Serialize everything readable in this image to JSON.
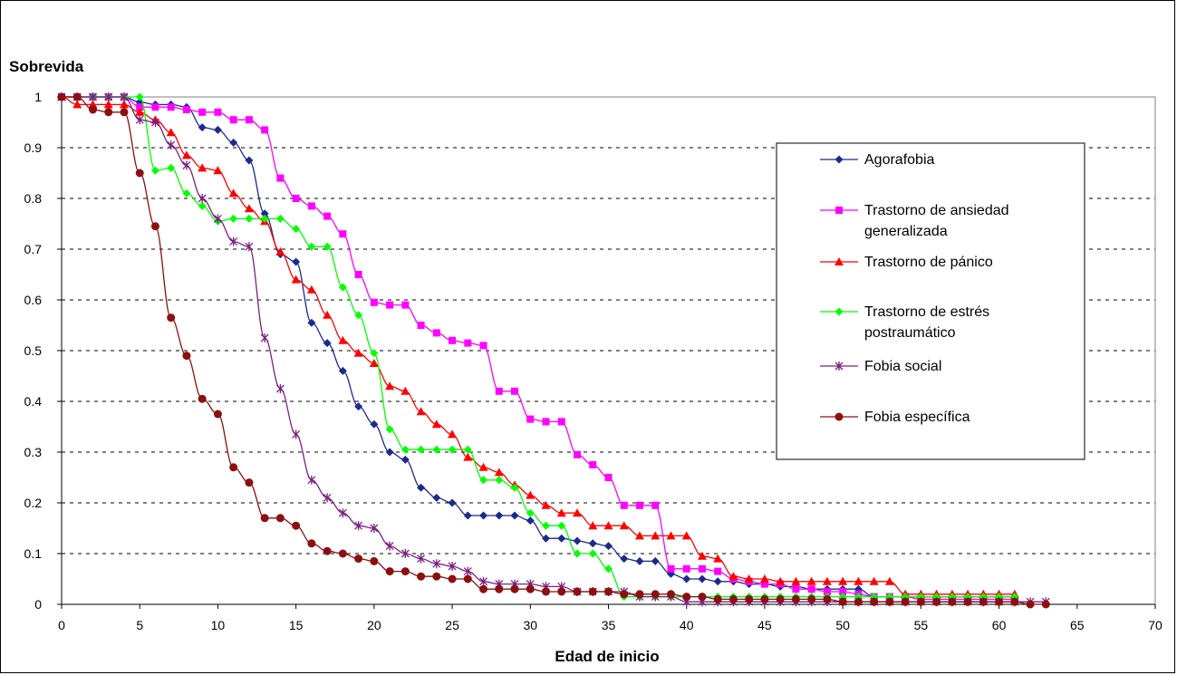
{
  "chart_data": {
    "type": "line",
    "ylabel": "Sobrevida",
    "xlabel": "Edad de inicio",
    "xlim": [
      0,
      70
    ],
    "ylim": [
      0,
      1
    ],
    "xticks": [
      0,
      5,
      10,
      15,
      20,
      25,
      30,
      35,
      40,
      45,
      50,
      55,
      60,
      65,
      70
    ],
    "yticks": [
      0,
      0.1,
      0.2,
      0.3,
      0.4,
      0.5,
      0.6,
      0.7,
      0.8,
      0.9,
      1
    ],
    "grid": "horizontal dashed",
    "legend_position": "right",
    "series": [
      {
        "name": "Agorafobia",
        "color": "#1c2a8c",
        "marker": "diamond",
        "x": [
          0,
          1,
          2,
          3,
          4,
          5,
          6,
          7,
          8,
          9,
          10,
          11,
          12,
          13,
          14,
          15,
          16,
          17,
          18,
          19,
          20,
          21,
          22,
          23,
          24,
          25,
          26,
          27,
          28,
          29,
          30,
          31,
          32,
          33,
          34,
          35,
          36,
          37,
          38,
          39,
          40,
          41,
          42,
          43,
          44,
          45,
          46,
          47,
          48,
          49,
          50,
          51,
          52,
          53,
          54,
          55,
          56,
          57,
          58,
          59,
          60,
          61
        ],
        "y": [
          1,
          1,
          1,
          1,
          1,
          0.99,
          0.985,
          0.985,
          0.98,
          0.94,
          0.935,
          0.91,
          0.875,
          0.77,
          0.69,
          0.675,
          0.555,
          0.515,
          0.46,
          0.39,
          0.355,
          0.3,
          0.285,
          0.23,
          0.21,
          0.2,
          0.175,
          0.175,
          0.175,
          0.175,
          0.165,
          0.13,
          0.13,
          0.125,
          0.12,
          0.115,
          0.09,
          0.085,
          0.085,
          0.06,
          0.05,
          0.05,
          0.045,
          0.045,
          0.04,
          0.04,
          0.035,
          0.035,
          0.03,
          0.03,
          0.03,
          0.03,
          0.015,
          0.015,
          0.015,
          0.015,
          0.015,
          0.015,
          0.015,
          0.015,
          0.015,
          0.015
        ]
      },
      {
        "name": "Trastorno de ansiedad generalizada",
        "color": "#ff00ff",
        "marker": "square",
        "x": [
          0,
          1,
          2,
          3,
          4,
          5,
          6,
          7,
          8,
          9,
          10,
          11,
          12,
          13,
          14,
          15,
          16,
          17,
          18,
          19,
          20,
          21,
          22,
          23,
          24,
          25,
          26,
          27,
          28,
          29,
          30,
          31,
          32,
          33,
          34,
          35,
          36,
          37,
          38,
          39,
          40,
          41,
          42,
          43,
          44,
          45,
          46,
          47,
          48,
          49,
          50,
          51,
          52,
          53,
          54,
          55,
          56,
          57,
          58,
          59,
          60,
          61
        ],
        "y": [
          1,
          1,
          1,
          1,
          1,
          0.98,
          0.98,
          0.98,
          0.975,
          0.97,
          0.97,
          0.955,
          0.955,
          0.935,
          0.84,
          0.8,
          0.785,
          0.765,
          0.73,
          0.65,
          0.595,
          0.59,
          0.59,
          0.55,
          0.535,
          0.52,
          0.515,
          0.51,
          0.42,
          0.42,
          0.365,
          0.36,
          0.36,
          0.295,
          0.275,
          0.25,
          0.195,
          0.195,
          0.195,
          0.07,
          0.07,
          0.07,
          0.065,
          0.05,
          0.045,
          0.04,
          0.04,
          0.03,
          0.03,
          0.025,
          0.025,
          0.02,
          0.015,
          0.015,
          0.015,
          0.01,
          0.01,
          0.01,
          0.01,
          0.01,
          0.01,
          0.01
        ]
      },
      {
        "name": "Trastorno de pánico",
        "color": "#ff0000",
        "marker": "triangle",
        "x": [
          0,
          1,
          2,
          3,
          4,
          5,
          6,
          7,
          8,
          9,
          10,
          11,
          12,
          13,
          14,
          15,
          16,
          17,
          18,
          19,
          20,
          21,
          22,
          23,
          24,
          25,
          26,
          27,
          28,
          29,
          30,
          31,
          32,
          33,
          34,
          35,
          36,
          37,
          38,
          39,
          40,
          41,
          42,
          43,
          44,
          45,
          46,
          47,
          48,
          49,
          50,
          51,
          52,
          53,
          54,
          55,
          56,
          57,
          58,
          59,
          60,
          61
        ],
        "y": [
          1,
          0.985,
          0.985,
          0.985,
          0.985,
          0.97,
          0.955,
          0.93,
          0.885,
          0.86,
          0.855,
          0.81,
          0.78,
          0.755,
          0.695,
          0.64,
          0.62,
          0.57,
          0.52,
          0.495,
          0.475,
          0.43,
          0.42,
          0.38,
          0.355,
          0.335,
          0.29,
          0.27,
          0.26,
          0.235,
          0.215,
          0.195,
          0.18,
          0.18,
          0.155,
          0.155,
          0.155,
          0.135,
          0.135,
          0.135,
          0.135,
          0.095,
          0.09,
          0.055,
          0.05,
          0.05,
          0.045,
          0.045,
          0.045,
          0.045,
          0.045,
          0.045,
          0.045,
          0.045,
          0.02,
          0.02,
          0.02,
          0.02,
          0.02,
          0.02,
          0.02,
          0.02
        ]
      },
      {
        "name": "Trastorno de estrés postraumático",
        "color": "#00ff00",
        "marker": "diamond",
        "x": [
          0,
          1,
          2,
          3,
          4,
          5,
          6,
          7,
          8,
          9,
          10,
          11,
          12,
          13,
          14,
          15,
          16,
          17,
          18,
          19,
          20,
          21,
          22,
          23,
          24,
          25,
          26,
          27,
          28,
          29,
          30,
          31,
          32,
          33,
          34,
          35,
          36,
          37,
          38,
          39,
          40,
          41,
          42,
          43,
          44,
          45,
          46,
          47,
          48,
          49,
          50,
          51,
          52,
          53,
          54,
          55,
          56,
          57,
          58,
          59,
          60,
          61
        ],
        "y": [
          1,
          1,
          1,
          1,
          1,
          1,
          0.855,
          0.86,
          0.81,
          0.785,
          0.755,
          0.76,
          0.76,
          0.76,
          0.76,
          0.74,
          0.705,
          0.705,
          0.625,
          0.57,
          0.495,
          0.345,
          0.305,
          0.305,
          0.305,
          0.305,
          0.305,
          0.245,
          0.245,
          0.23,
          0.18,
          0.155,
          0.155,
          0.1,
          0.1,
          0.07,
          0.015,
          0.015,
          0.015,
          0.015,
          0.015,
          0.015,
          0.015,
          0.015,
          0.015,
          0.015,
          0.015,
          0.015,
          0.015,
          0.015,
          0.015,
          0.015,
          0.015,
          0.015,
          0.015,
          0.015,
          0.015,
          0.015,
          0.015,
          0.015,
          0.015,
          0.015
        ]
      },
      {
        "name": "Fobia social",
        "color": "#7b1f82",
        "marker": "star",
        "x": [
          0,
          1,
          2,
          3,
          4,
          5,
          6,
          7,
          8,
          9,
          10,
          11,
          12,
          13,
          14,
          15,
          16,
          17,
          18,
          19,
          20,
          21,
          22,
          23,
          24,
          25,
          26,
          27,
          28,
          29,
          30,
          31,
          32,
          33,
          34,
          35,
          36,
          37,
          38,
          39,
          40,
          41,
          42,
          43,
          44,
          45,
          46,
          47,
          48,
          49,
          50,
          51,
          52,
          53,
          54,
          55,
          56,
          57,
          58,
          59,
          60,
          61,
          62,
          63
        ],
        "y": [
          1,
          1,
          1,
          1,
          1,
          0.955,
          0.95,
          0.905,
          0.865,
          0.8,
          0.76,
          0.715,
          0.705,
          0.525,
          0.425,
          0.335,
          0.245,
          0.21,
          0.18,
          0.155,
          0.15,
          0.115,
          0.1,
          0.09,
          0.08,
          0.075,
          0.065,
          0.045,
          0.04,
          0.04,
          0.04,
          0.035,
          0.035,
          0.025,
          0.025,
          0.025,
          0.025,
          0.015,
          0.015,
          0.015,
          0.005,
          0.005,
          0.005,
          0.005,
          0.005,
          0.005,
          0.005,
          0.005,
          0.005,
          0.005,
          0.005,
          0.005,
          0.005,
          0.005,
          0.005,
          0.005,
          0.005,
          0.005,
          0.005,
          0.005,
          0.005,
          0.005,
          0.005,
          0.005
        ]
      },
      {
        "name": "Fobia específica",
        "color": "#8b1010",
        "marker": "circle",
        "x": [
          0,
          1,
          2,
          3,
          4,
          5,
          6,
          7,
          8,
          9,
          10,
          11,
          12,
          13,
          14,
          15,
          16,
          17,
          18,
          19,
          20,
          21,
          22,
          23,
          24,
          25,
          26,
          27,
          28,
          29,
          30,
          31,
          32,
          33,
          34,
          35,
          36,
          37,
          38,
          39,
          40,
          41,
          42,
          43,
          44,
          45,
          46,
          47,
          48,
          49,
          50,
          51,
          52,
          53,
          54,
          55,
          56,
          57,
          58,
          59,
          60,
          61,
          62,
          63
        ],
        "y": [
          1,
          1,
          0.975,
          0.97,
          0.97,
          0.85,
          0.745,
          0.565,
          0.49,
          0.405,
          0.375,
          0.27,
          0.24,
          0.17,
          0.17,
          0.155,
          0.12,
          0.105,
          0.1,
          0.09,
          0.085,
          0.065,
          0.065,
          0.055,
          0.055,
          0.05,
          0.05,
          0.03,
          0.03,
          0.03,
          0.03,
          0.025,
          0.025,
          0.025,
          0.025,
          0.025,
          0.02,
          0.02,
          0.02,
          0.02,
          0.015,
          0.015,
          0.01,
          0.01,
          0.01,
          0.01,
          0.01,
          0.01,
          0.01,
          0.01,
          0.005,
          0.005,
          0.005,
          0.005,
          0.005,
          0.005,
          0.005,
          0.005,
          0.005,
          0.005,
          0.005,
          0.005,
          0.0,
          0.0
        ]
      }
    ]
  }
}
